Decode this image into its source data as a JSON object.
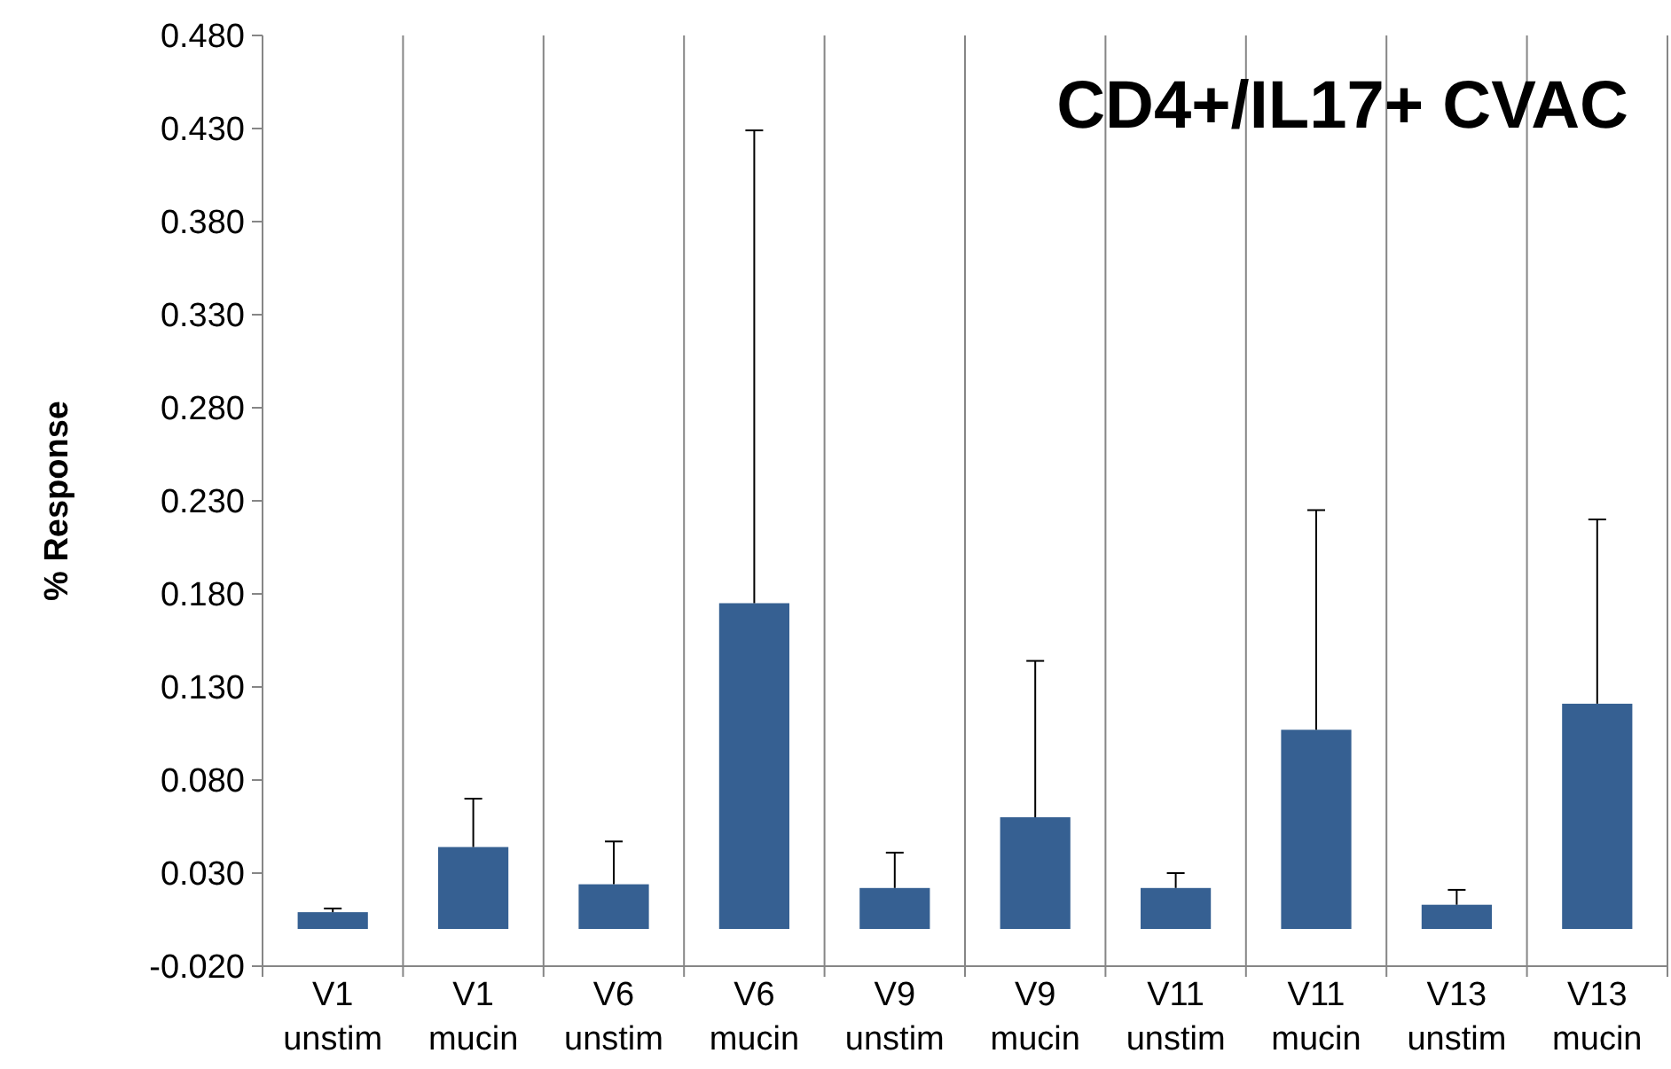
{
  "chart_data": {
    "type": "bar",
    "title": "CD4+/IL17+ CVAC",
    "ylabel": "% Response",
    "categories": [
      "V1 unstim",
      "V1 mucin",
      "V6 unstim",
      "V6 mucin",
      "V9 unstim",
      "V9 mucin",
      "V11 unstim",
      "V11 mucin",
      "V13 unstim",
      "V13 mucin"
    ],
    "values": [
      0.009,
      0.044,
      0.024,
      0.175,
      0.022,
      0.06,
      0.022,
      0.107,
      0.013,
      0.121
    ],
    "errors": [
      [
        0.009,
        0.011
      ],
      [
        0.044,
        0.07
      ],
      [
        0.024,
        0.047
      ],
      [
        0.175,
        0.429
      ],
      [
        0.022,
        0.041
      ],
      [
        0.06,
        0.144
      ],
      [
        0.022,
        0.03
      ],
      [
        0.107,
        0.225
      ],
      [
        0.013,
        0.021
      ],
      [
        0.121,
        0.22
      ]
    ],
    "color": "#366092",
    "ylim": [
      -0.02,
      0.48
    ],
    "yticks": [
      {
        "value": -0.02,
        "label": "-0.020"
      },
      {
        "value": 0.03,
        "label": "0.030"
      },
      {
        "value": 0.08,
        "label": "0.080"
      },
      {
        "value": 0.13,
        "label": "0.130"
      },
      {
        "value": 0.18,
        "label": "0.180"
      },
      {
        "value": 0.23,
        "label": "0.230"
      },
      {
        "value": 0.28,
        "label": "0.280"
      },
      {
        "value": 0.33,
        "label": "0.330"
      },
      {
        "value": 0.38,
        "label": "0.380"
      },
      {
        "value": 0.43,
        "label": "0.430"
      },
      {
        "value": 0.48,
        "label": "0.480"
      }
    ],
    "grid": "x"
  }
}
